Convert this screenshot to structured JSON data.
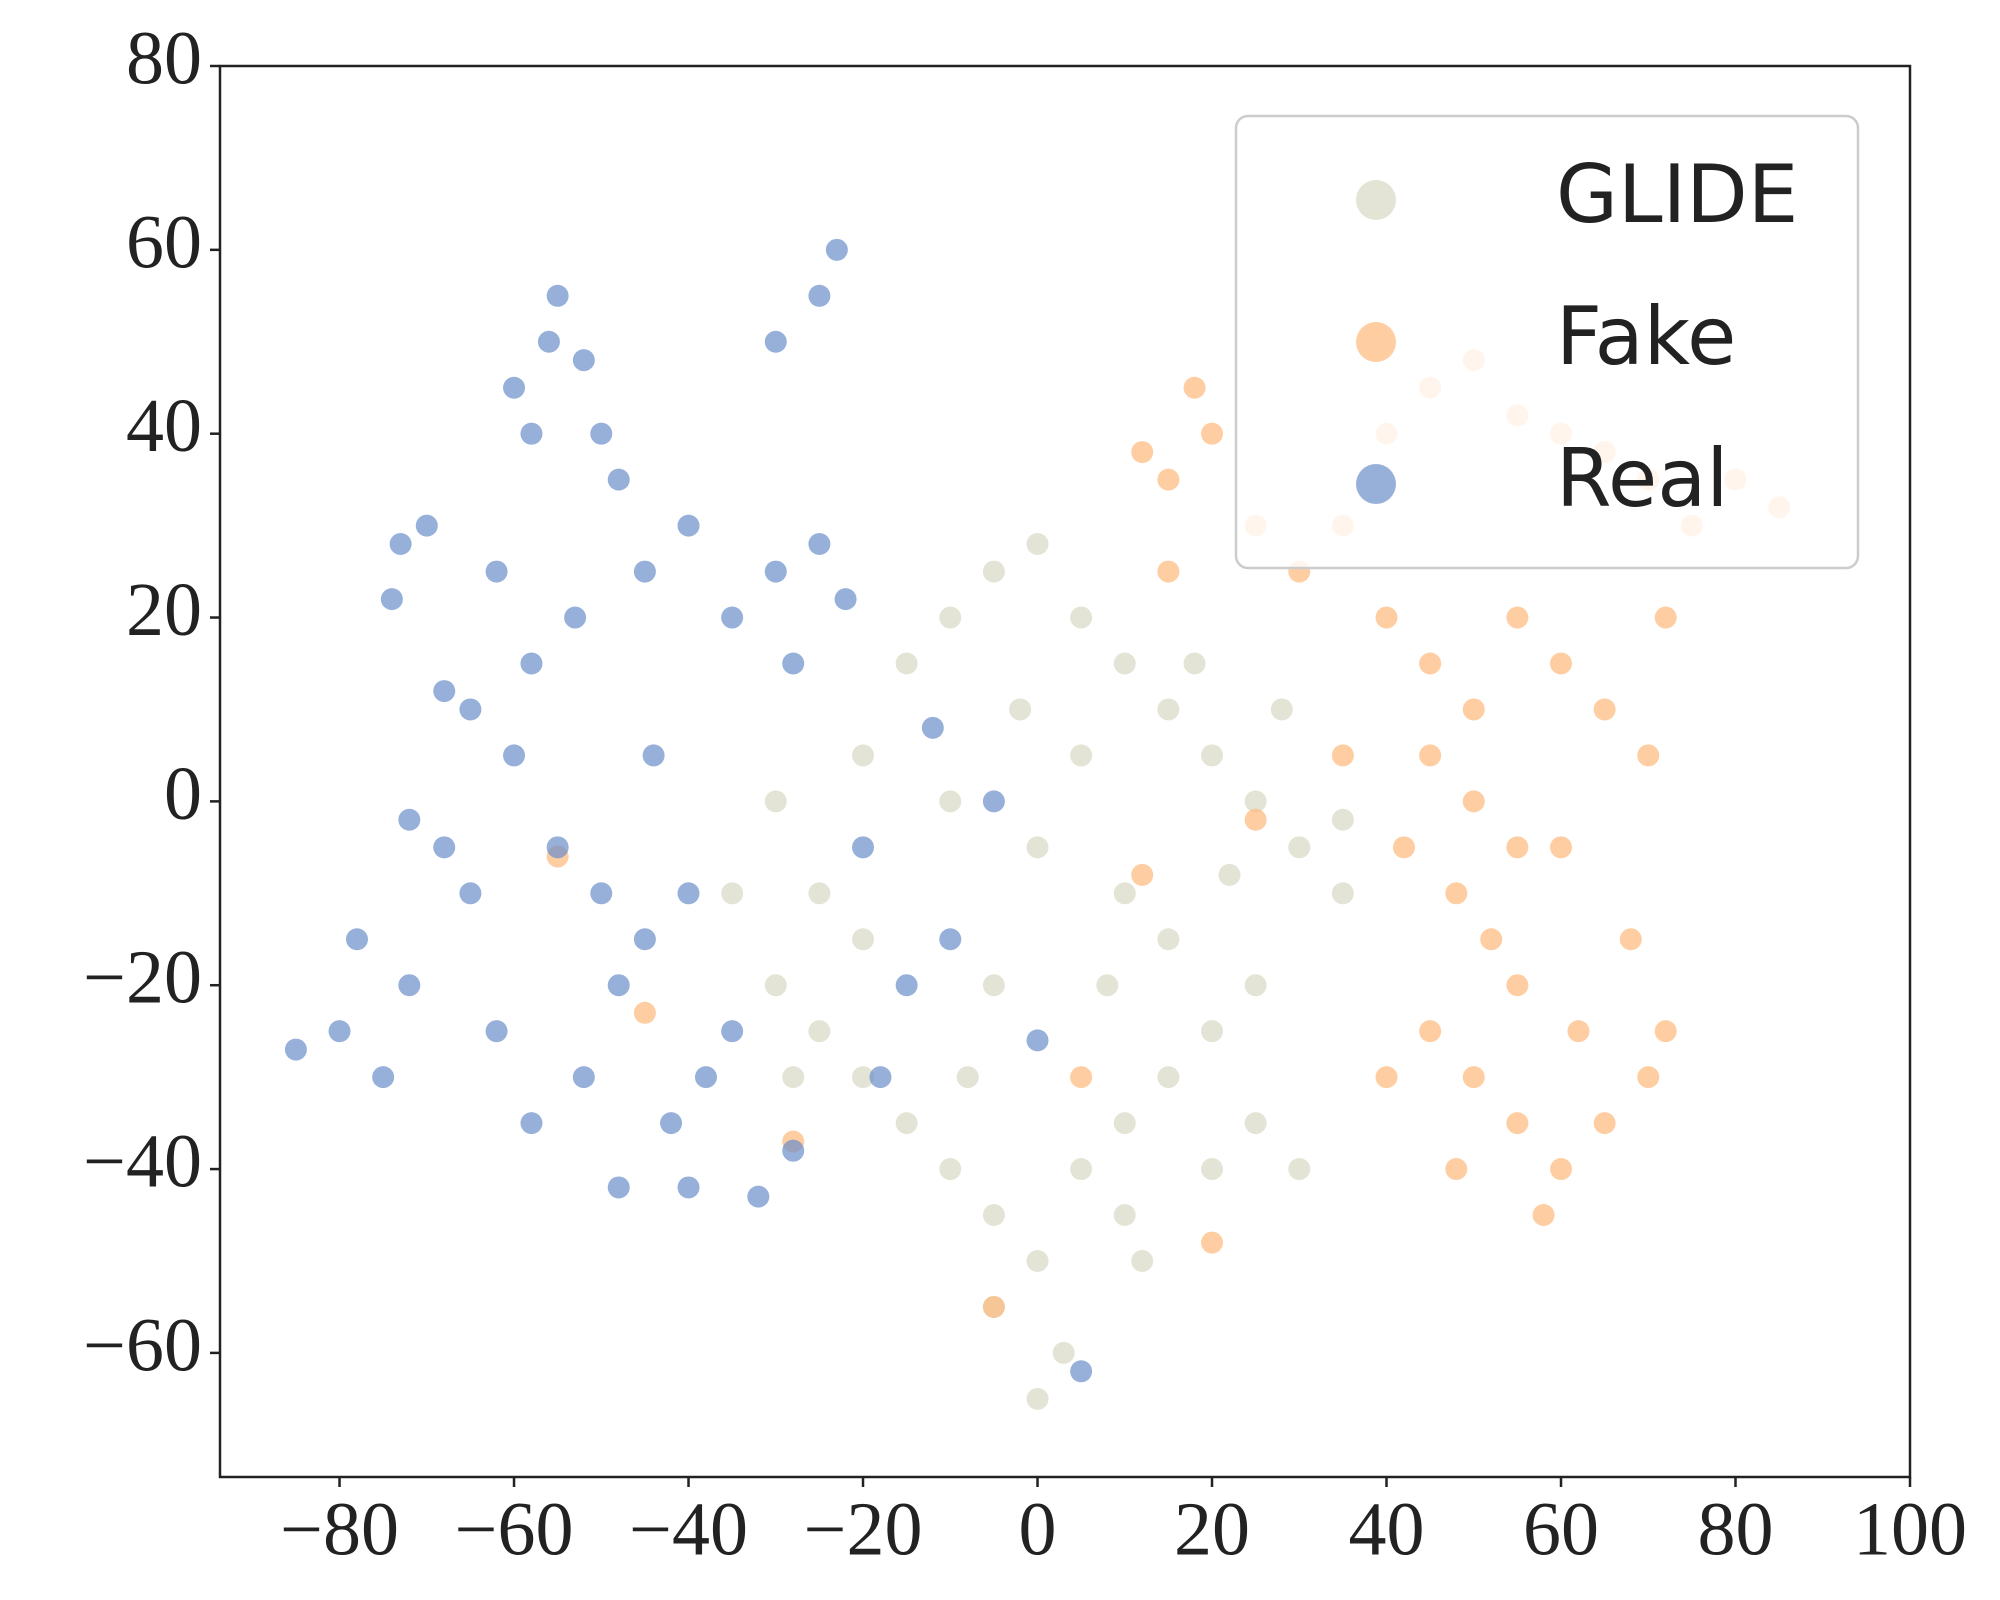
{
  "chart_data": {
    "type": "scatter",
    "xlim": [
      -93.7,
      100
    ],
    "ylim": [
      -73.5,
      80
    ],
    "xticks": [
      {
        "value": -80,
        "label": "−80"
      },
      {
        "value": -60,
        "label": "−60"
      },
      {
        "value": -40,
        "label": "−40"
      },
      {
        "value": -20,
        "label": "−20"
      },
      0,
      20,
      40,
      60,
      80,
      100
    ],
    "yticks": [
      {
        "value": -60,
        "label": "−60"
      },
      {
        "value": -40,
        "label": "−40"
      },
      {
        "value": -20,
        "label": "−20"
      },
      0,
      20,
      40,
      60,
      80
    ],
    "legend": "upper right",
    "series": [
      {
        "name": "GLIDE",
        "color": "#d9d8c5",
        "x": [
          -30,
          -25,
          -20,
          -15,
          -10,
          -5,
          0,
          5,
          10,
          15,
          20,
          25,
          30,
          35,
          -25,
          -20,
          -15,
          -10,
          -5,
          0,
          5,
          10,
          15,
          20,
          25,
          -30,
          -35,
          0,
          3,
          -5,
          10,
          20,
          25,
          30,
          -10,
          0,
          5,
          10,
          15,
          -5,
          -20,
          18,
          28,
          -2,
          8,
          -8,
          12,
          35,
          22,
          -28
        ],
        "values": [
          0,
          -10,
          5,
          15,
          20,
          25,
          28,
          20,
          15,
          10,
          5,
          0,
          -5,
          -2,
          -25,
          -30,
          -35,
          -40,
          -45,
          -50,
          -40,
          -35,
          -30,
          -25,
          -20,
          -20,
          -10,
          -65,
          -60,
          -55,
          -45,
          -40,
          -35,
          -40,
          0,
          -5,
          5,
          -10,
          -15,
          -20,
          -15,
          15,
          10,
          10,
          -20,
          -30,
          -50,
          -10,
          -8,
          -30
        ]
      },
      {
        "name": "Fake",
        "color": "#fdb97a",
        "x": [
          15,
          18,
          20,
          12,
          25,
          30,
          35,
          40,
          45,
          50,
          55,
          60,
          65,
          70,
          75,
          80,
          85,
          40,
          45,
          50,
          55,
          60,
          65,
          70,
          72,
          45,
          50,
          55,
          60,
          42,
          48,
          52,
          55,
          45,
          50,
          55,
          60,
          65,
          70,
          72,
          62,
          58,
          48,
          40,
          68,
          35,
          25,
          12,
          20,
          5,
          -5,
          -28,
          -45,
          -55,
          15
        ],
        "values": [
          35,
          45,
          40,
          38,
          30,
          25,
          30,
          40,
          45,
          48,
          42,
          40,
          38,
          35,
          30,
          35,
          32,
          20,
          15,
          10,
          20,
          15,
          10,
          5,
          20,
          5,
          0,
          -5,
          -5,
          -5,
          -10,
          -15,
          -20,
          -25,
          -30,
          -35,
          -40,
          -35,
          -30,
          -25,
          -25,
          -45,
          -40,
          -30,
          -15,
          5,
          -2,
          -8,
          -48,
          -30,
          -55,
          -37,
          -23,
          -6,
          25
        ]
      },
      {
        "name": "Real",
        "color": "#6b8fcb",
        "x": [
          -85,
          -80,
          -78,
          -75,
          -72,
          -73,
          -70,
          -74,
          -72,
          -68,
          -65,
          -62,
          -60,
          -58,
          -56,
          -55,
          -52,
          -50,
          -48,
          -53,
          -58,
          -60,
          -55,
          -50,
          -45,
          -62,
          -58,
          -52,
          -48,
          -42,
          -40,
          -38,
          -35,
          -40,
          -44,
          -45,
          -40,
          -35,
          -30,
          -28,
          -25,
          -22,
          -25,
          -23,
          -30,
          -32,
          -28,
          -18,
          -10,
          -5,
          -12,
          0,
          5,
          -15,
          -65,
          -68,
          -48,
          -20
        ],
        "values": [
          -27,
          -25,
          -15,
          -30,
          -20,
          28,
          30,
          22,
          -2,
          -5,
          10,
          25,
          45,
          40,
          50,
          55,
          48,
          40,
          35,
          20,
          15,
          5,
          -5,
          -10,
          -15,
          -25,
          -35,
          -30,
          -20,
          -35,
          -42,
          -30,
          -25,
          -10,
          5,
          25,
          30,
          20,
          25,
          15,
          28,
          22,
          55,
          60,
          50,
          -43,
          -38,
          -30,
          -15,
          0,
          8,
          -26,
          -62,
          -20,
          -10,
          12,
          -42,
          -5
        ]
      }
    ]
  }
}
